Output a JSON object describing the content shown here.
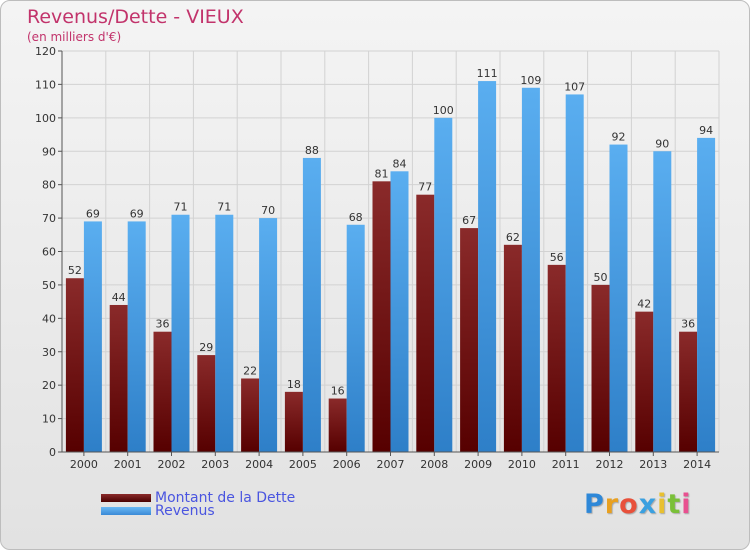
{
  "title": "Revenus/Dette - VIEUX",
  "subtitle": "(en milliers d'€)",
  "logo": "Proxiti",
  "chart_data": {
    "type": "bar",
    "categories": [
      "2000",
      "2001",
      "2002",
      "2003",
      "2004",
      "2005",
      "2006",
      "2007",
      "2008",
      "2009",
      "2010",
      "2011",
      "2012",
      "2013",
      "2014"
    ],
    "series": [
      {
        "name": "Montant de la Dette",
        "color": "#7a1a1c",
        "values": [
          52,
          44,
          36,
          29,
          22,
          18,
          16,
          81,
          77,
          67,
          62,
          56,
          50,
          42,
          36
        ]
      },
      {
        "name": "Revenus",
        "color": "#4a9ee2",
        "values": [
          69,
          69,
          71,
          71,
          70,
          88,
          68,
          84,
          100,
          111,
          109,
          107,
          92,
          90,
          94
        ]
      }
    ],
    "ylim": [
      0,
      120
    ],
    "yticks": [
      0,
      10,
      20,
      30,
      40,
      50,
      60,
      70,
      80,
      90,
      100,
      110,
      120
    ],
    "grid": true,
    "legend_position": "bottom-left"
  }
}
